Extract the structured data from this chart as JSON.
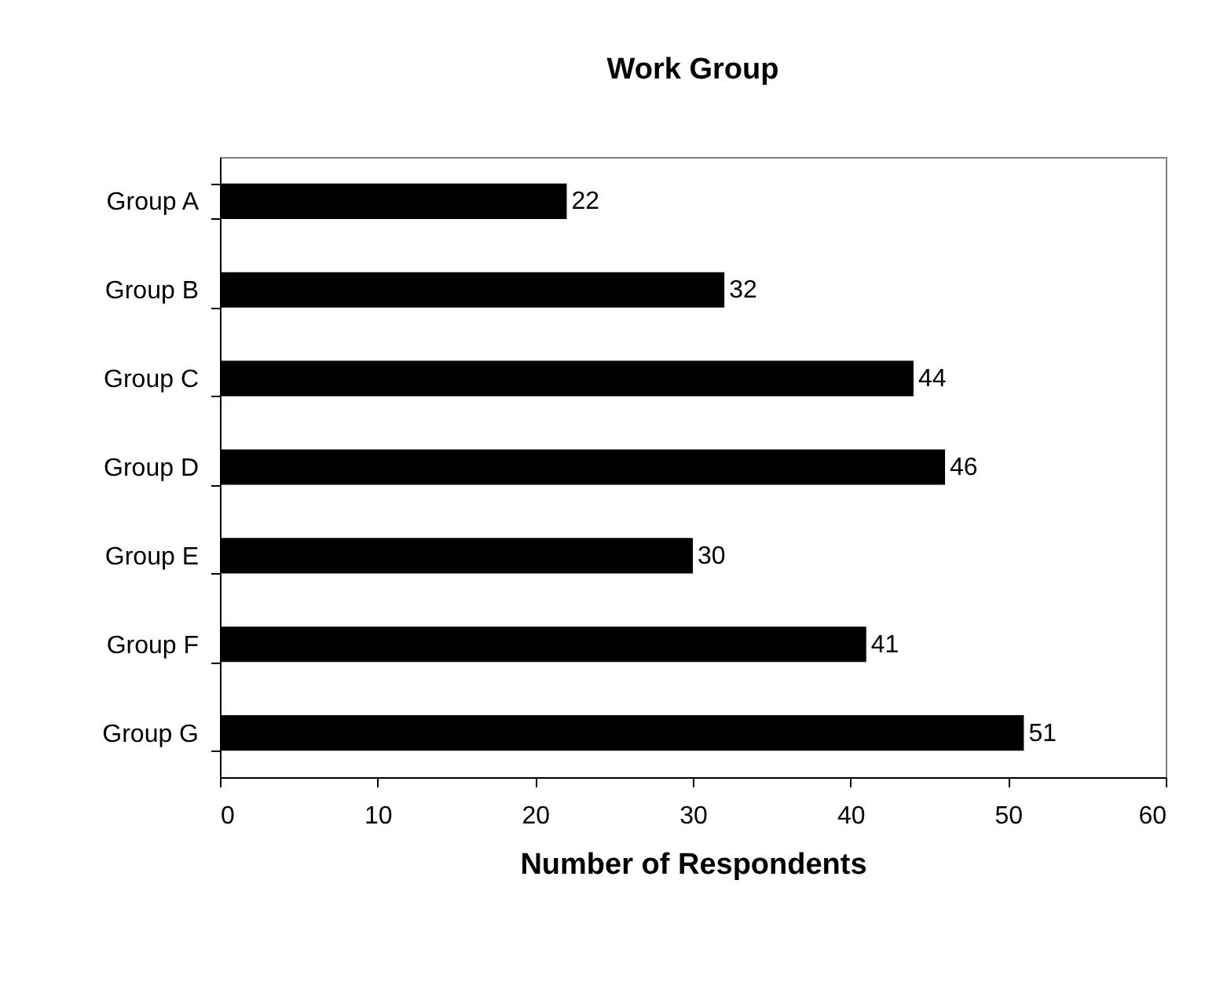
{
  "chart_data": {
    "type": "bar",
    "orientation": "horizontal",
    "title": "Work Group",
    "xlabel": "Number of Respondents",
    "categories": [
      "Group A",
      "Group B",
      "Group C",
      "Group D",
      "Group E",
      "Group F",
      "Group G"
    ],
    "values": [
      22,
      32,
      44,
      46,
      30,
      41,
      51
    ],
    "color": "#000000",
    "xlim": [
      0,
      60
    ],
    "xticks": [
      0,
      10,
      20,
      30,
      40,
      50,
      60
    ],
    "data_labels": true
  }
}
